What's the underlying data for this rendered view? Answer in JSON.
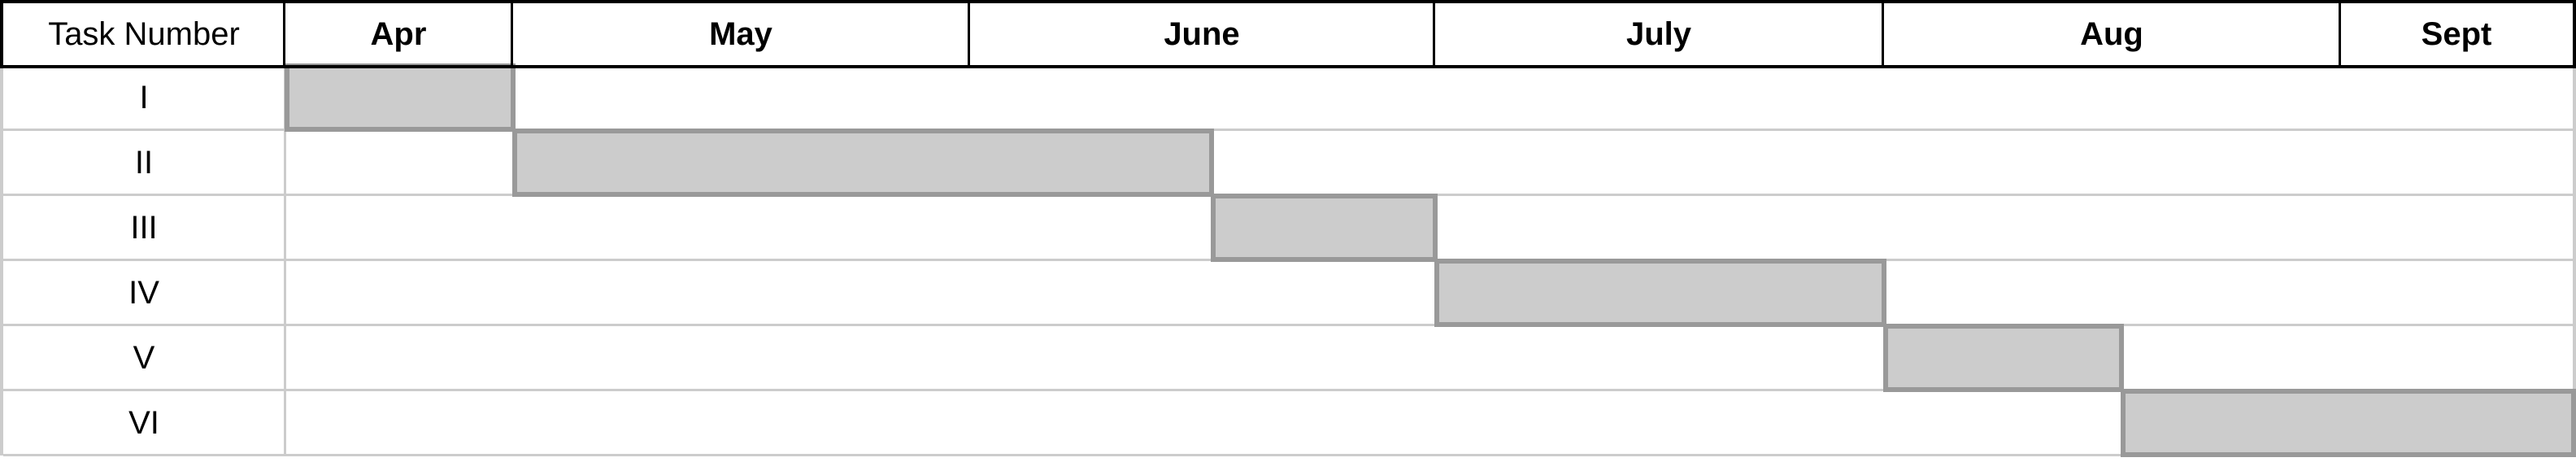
{
  "header": {
    "task_column": "Task Number",
    "months": [
      "Apr",
      "May",
      "June",
      "July",
      "Aug",
      "Sept"
    ]
  },
  "tasks": [
    {
      "label": "I",
      "start": 0.0,
      "end": 1.0
    },
    {
      "label": "II",
      "start": 1.0,
      "end": 2.52
    },
    {
      "label": "III",
      "start": 2.52,
      "end": 3.0
    },
    {
      "label": "IV",
      "start": 3.0,
      "end": 4.0
    },
    {
      "label": "V",
      "start": 4.0,
      "end": 4.52
    },
    {
      "label": "VI",
      "start": 4.52,
      "end": 6.0
    }
  ],
  "colors": {
    "bar_fill": "#cccccc",
    "bar_border": "#999999",
    "grid_line": "#cccccc",
    "header_border": "#000000"
  }
}
